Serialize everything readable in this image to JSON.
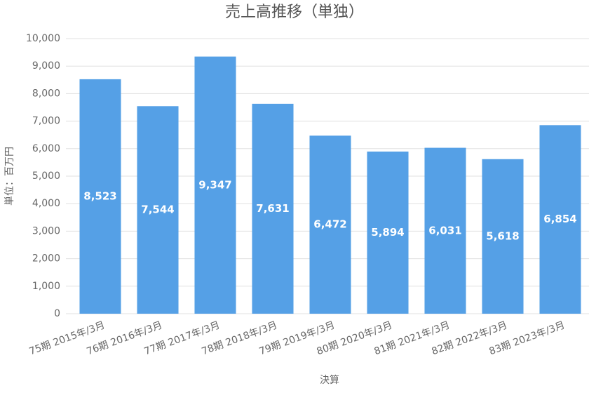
{
  "chart_data": {
    "type": "bar",
    "title": "売上高推移（単独）",
    "x_label": "決算",
    "y_label": "単位：百万円",
    "categories": [
      "75期 2015年/3月",
      "76期 2016年/3月",
      "77期 2017年/3月",
      "78期 2018年/3月",
      "79期 2019年/3月",
      "80期 2020年/3月",
      "81期 2021年/3月",
      "82期 2022年/3月",
      "83期 2023年/3月"
    ],
    "values": [
      8523,
      7544,
      9347,
      7631,
      6472,
      5894,
      6031,
      5618,
      6854
    ],
    "value_labels": [
      "8,523",
      "7,544",
      "9,347",
      "7,631",
      "6,472",
      "5,894",
      "6,031",
      "5,618",
      "6,854"
    ],
    "color": "#55a0e6",
    "ylim": [
      0,
      10000
    ],
    "yticks": [
      0,
      {
        "value": 1000,
        "label": "1,000"
      },
      {
        "value": 2000,
        "label": "2,000"
      },
      {
        "value": 3000,
        "label": "3,000"
      },
      {
        "value": 4000,
        "label": "4,000"
      },
      {
        "value": 5000,
        "label": "5,000"
      },
      {
        "value": 6000,
        "label": "6,000"
      },
      {
        "value": 7000,
        "label": "7,000"
      },
      {
        "value": 8000,
        "label": "8,000"
      },
      {
        "value": 9000,
        "label": "9,000"
      },
      {
        "value": 10000,
        "label": "10,000"
      }
    ],
    "grid": true
  }
}
